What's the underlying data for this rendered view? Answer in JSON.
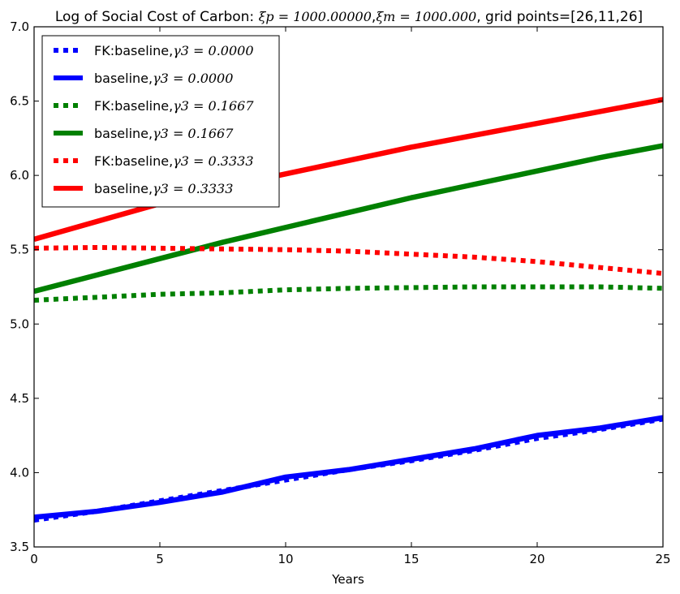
{
  "chart_data": {
    "type": "line",
    "title": {
      "prefix": "Log of Social Cost of Carbon: ",
      "xi_p": "ξp = 1000.00000",
      "separator": ",",
      "xi_m": "ξm = 1000.000",
      "suffix": ", grid points=[26,11,26]"
    },
    "xlabel": "Years",
    "ylabel": "",
    "xlim": [
      0,
      25
    ],
    "ylim": [
      3.5,
      7.0
    ],
    "xticks": [
      0,
      5,
      10,
      15,
      20,
      25
    ],
    "yticks": [
      3.5,
      4.0,
      4.5,
      5.0,
      5.5,
      6.0,
      6.5,
      7.0
    ],
    "xtick_labels": [
      "0",
      "5",
      "10",
      "15",
      "20",
      "25"
    ],
    "ytick_labels": [
      "3.5",
      "4.0",
      "4.5",
      "5.0",
      "5.5",
      "6.0",
      "6.5",
      "7.0"
    ],
    "grid": false,
    "legend_position": "top-left",
    "x": [
      0,
      2.5,
      5,
      7.5,
      10,
      12.5,
      15,
      17.5,
      20,
      22.5,
      25
    ],
    "series": [
      {
        "name": "FK:baseline,γ3 = 0.0000",
        "legend_prefix": "FK:baseline,",
        "legend_math": "γ3 = 0.0000",
        "color": "#0000ff",
        "style": "dotted",
        "values": [
          3.68,
          3.74,
          3.81,
          3.88,
          3.95,
          4.02,
          4.08,
          4.15,
          4.23,
          4.29,
          4.36
        ]
      },
      {
        "name": "baseline,γ3 = 0.0000",
        "legend_prefix": "baseline,",
        "legend_math": "γ3 = 0.0000",
        "color": "#0000ff",
        "style": "solid",
        "values": [
          3.7,
          3.74,
          3.8,
          3.87,
          3.97,
          4.02,
          4.09,
          4.16,
          4.25,
          4.3,
          4.37
        ]
      },
      {
        "name": "FK:baseline,γ3 = 0.1667",
        "legend_prefix": "FK:baseline,",
        "legend_math": "γ3 = 0.1667",
        "color": "#008000",
        "style": "dotted",
        "values": [
          5.16,
          5.18,
          5.2,
          5.21,
          5.23,
          5.24,
          5.245,
          5.25,
          5.25,
          5.25,
          5.24
        ]
      },
      {
        "name": "baseline,γ3 = 0.1667",
        "legend_prefix": "baseline,",
        "legend_math": "γ3 = 0.1667",
        "color": "#008000",
        "style": "solid",
        "values": [
          5.22,
          5.33,
          5.44,
          5.55,
          5.65,
          5.75,
          5.85,
          5.94,
          6.03,
          6.12,
          6.2
        ]
      },
      {
        "name": "FK:baseline,γ3 = 0.3333",
        "legend_prefix": "FK:baseline,",
        "legend_math": "γ3 = 0.3333",
        "color": "#ff0000",
        "style": "dotted",
        "values": [
          5.51,
          5.515,
          5.51,
          5.505,
          5.5,
          5.49,
          5.47,
          5.45,
          5.42,
          5.38,
          5.34
        ]
      },
      {
        "name": "baseline,γ3 = 0.3333",
        "legend_prefix": "baseline,",
        "legend_math": "γ3 = 0.3333",
        "color": "#ff0000",
        "style": "solid",
        "values": [
          5.57,
          5.69,
          5.81,
          5.92,
          6.01,
          6.1,
          6.19,
          6.27,
          6.35,
          6.43,
          6.51
        ]
      }
    ]
  }
}
